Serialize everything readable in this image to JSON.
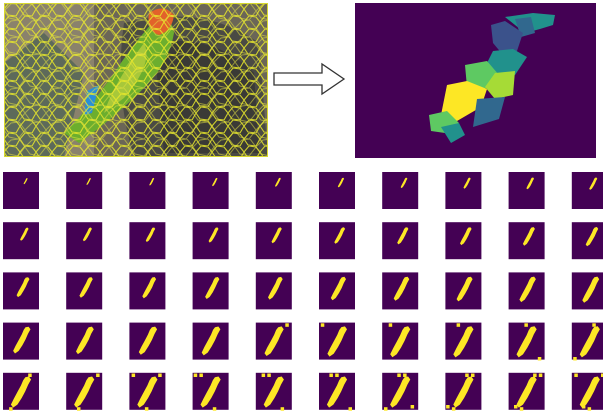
{
  "figure": {
    "source_image": {
      "kind": "superpixel-segmented photo of a parrot",
      "boundary_color": "#e8e82a"
    },
    "output_mask": {
      "colormap": "viridis",
      "background": "#440154",
      "region_colors": [
        "#3b528b",
        "#21918c",
        "#5ec962",
        "#a6db36",
        "#fde725",
        "#31688e"
      ]
    },
    "arrow": {
      "direction": "right",
      "icon": "hollow-right-arrow-icon"
    },
    "mask_sequence": {
      "rows": 5,
      "columns": 10,
      "background": "#440154",
      "foreground": "#fde725",
      "progress": [
        0.02,
        0.04,
        0.06,
        0.08,
        0.1,
        0.12,
        0.14,
        0.16,
        0.18,
        0.2,
        0.22,
        0.24,
        0.26,
        0.28,
        0.3,
        0.32,
        0.34,
        0.36,
        0.38,
        0.4,
        0.42,
        0.44,
        0.46,
        0.48,
        0.5,
        0.52,
        0.54,
        0.56,
        0.58,
        0.6,
        0.62,
        0.64,
        0.66,
        0.68,
        0.7,
        0.72,
        0.74,
        0.76,
        0.78,
        0.8,
        0.82,
        0.84,
        0.86,
        0.88,
        0.9,
        0.92,
        0.94,
        0.96,
        0.98,
        1.0
      ]
    }
  }
}
